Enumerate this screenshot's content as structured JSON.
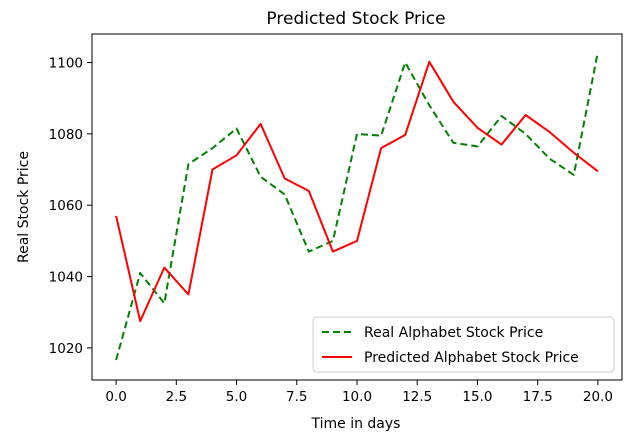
{
  "chart_data": {
    "type": "line",
    "title": "Predicted Stock Price",
    "xlabel": "Time in days",
    "ylabel": "Real Stock Price",
    "xlim": [
      -1,
      21
    ],
    "ylim": [
      1011,
      1108
    ],
    "xticks": [
      "0.0",
      "2.5",
      "5.0",
      "7.5",
      "10.0",
      "12.5",
      "15.0",
      "17.5",
      "20.0"
    ],
    "xtick_values": [
      0,
      2.5,
      5,
      7.5,
      10,
      12.5,
      15,
      17.5,
      20
    ],
    "yticks": [
      "1020",
      "1040",
      "1060",
      "1080",
      "1100"
    ],
    "ytick_values": [
      1020,
      1040,
      1060,
      1080,
      1100
    ],
    "grid": false,
    "legend_position": "lower-right",
    "x": [
      0,
      1,
      2,
      3,
      4,
      5,
      6,
      7,
      8,
      9,
      10,
      11,
      12,
      13,
      14,
      15,
      16,
      17,
      18,
      19,
      20
    ],
    "series": [
      {
        "name": "Real Alphabet Stock Price",
        "color": "#008000",
        "style": "dashed",
        "values": [
          1016.6,
          1041,
          1032.5,
          1071.5,
          1076,
          1081.5,
          1068,
          1063,
          1047,
          1050,
          1080,
          1079.5,
          1100,
          1088,
          1077.5,
          1076.5,
          1085,
          1080,
          1073,
          1068.5,
          1103
        ]
      },
      {
        "name": "Predicted Alphabet Stock Price",
        "color": "#ff0000",
        "style": "solid",
        "values": [
          1057,
          1027.5,
          1042.5,
          1035,
          1070,
          1074,
          1082.8,
          1067.5,
          1064,
          1047,
          1050,
          1076,
          1079.7,
          1100.2,
          1089,
          1081.7,
          1077,
          1085.3,
          1080.5,
          1074.7,
          1069.5
        ]
      }
    ]
  }
}
